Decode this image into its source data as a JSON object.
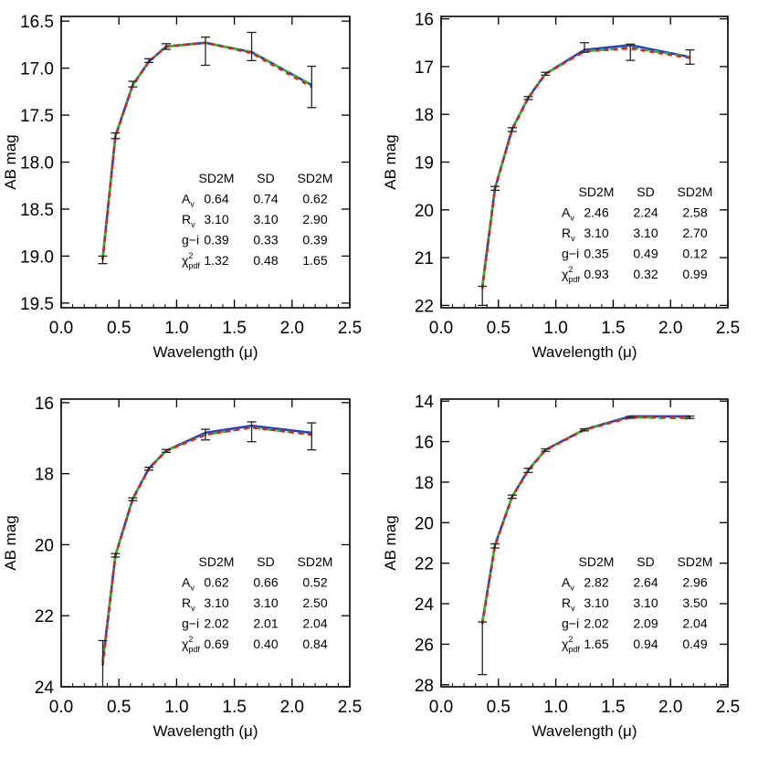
{
  "chart_data": [
    {
      "type": "line",
      "xlabel": "Wavelength (μ)",
      "ylabel": "AB mag",
      "xlim": [
        0.0,
        2.5
      ],
      "ylim": [
        19.55,
        16.45
      ],
      "y_inverted": true,
      "xticks": [
        "0.0",
        "0.5",
        "1.0",
        "1.5",
        "2.0",
        "2.5"
      ],
      "yticks": [
        "16.5",
        "17.0",
        "17.5",
        "18.0",
        "18.5",
        "19.0",
        "19.5"
      ],
      "x": [
        0.36,
        0.47,
        0.62,
        0.76,
        0.91,
        1.25,
        1.65,
        2.17
      ],
      "series": [
        {
          "color": "#1f3fd0",
          "values": [
            19.02,
            17.72,
            17.18,
            16.93,
            16.77,
            16.73,
            16.83,
            17.18
          ]
        },
        {
          "color": "#20c020",
          "values": [
            19.02,
            17.72,
            17.18,
            16.93,
            16.77,
            16.73,
            16.83,
            17.18
          ]
        },
        {
          "color": "#e02020",
          "values": [
            19.04,
            17.73,
            17.18,
            16.93,
            16.77,
            16.73,
            16.84,
            17.2
          ]
        }
      ],
      "errorbars": [
        {
          "x": 0.36,
          "y": 19.04,
          "err": 0.04
        },
        {
          "x": 0.47,
          "y": 17.72,
          "err": 0.03
        },
        {
          "x": 0.62,
          "y": 17.17,
          "err": 0.03
        },
        {
          "x": 0.76,
          "y": 16.92,
          "err": 0.02
        },
        {
          "x": 0.91,
          "y": 16.77,
          "err": 0.03
        },
        {
          "x": 1.25,
          "y": 16.82,
          "err": 0.15
        },
        {
          "x": 1.65,
          "y": 16.77,
          "err": 0.15
        },
        {
          "x": 2.17,
          "y": 17.2,
          "err": 0.22
        }
      ],
      "table": {
        "headers": [
          "SD2M",
          "SD",
          "SD2M"
        ],
        "rows": [
          {
            "label": "A",
            "sub": "v",
            "values": [
              "0.64",
              "0.74",
              "0.62"
            ]
          },
          {
            "label": "R",
            "sub": "v",
            "values": [
              "3.10",
              "3.10",
              "2.90"
            ]
          },
          {
            "label": "g−i",
            "sub": "",
            "values": [
              "0.39",
              "0.33",
              "0.39"
            ]
          },
          {
            "label": "χ",
            "sup": "2",
            "sub": "pdf",
            "values": [
              "1.32",
              "0.48",
              "1.65"
            ]
          }
        ]
      }
    },
    {
      "type": "line",
      "xlabel": "Wavelength (μ)",
      "ylabel": "AB mag",
      "xlim": [
        0.0,
        2.5
      ],
      "ylim": [
        22.05,
        15.95
      ],
      "y_inverted": true,
      "xticks": [
        "0.0",
        "0.5",
        "1.0",
        "1.5",
        "2.0",
        "2.5"
      ],
      "yticks": [
        "16",
        "17",
        "18",
        "19",
        "20",
        "21",
        "22"
      ],
      "x": [
        0.36,
        0.47,
        0.62,
        0.76,
        0.91,
        1.25,
        1.65,
        2.17
      ],
      "series": [
        {
          "color": "#1f3fd0",
          "values": [
            21.6,
            19.55,
            18.3,
            17.65,
            17.15,
            16.65,
            16.55,
            16.8
          ]
        },
        {
          "color": "#20c020",
          "values": [
            21.6,
            19.55,
            18.3,
            17.65,
            17.15,
            16.68,
            16.6,
            16.8
          ]
        },
        {
          "color": "#e02020",
          "values": [
            21.65,
            19.55,
            18.32,
            17.66,
            17.15,
            16.68,
            16.62,
            16.82
          ]
        }
      ],
      "errorbars": [
        {
          "x": 0.36,
          "y": 21.8,
          "err": 0.2
        },
        {
          "x": 0.47,
          "y": 19.55,
          "err": 0.04
        },
        {
          "x": 0.62,
          "y": 18.32,
          "err": 0.04
        },
        {
          "x": 0.76,
          "y": 17.66,
          "err": 0.03
        },
        {
          "x": 0.91,
          "y": 17.15,
          "err": 0.03
        },
        {
          "x": 1.25,
          "y": 16.6,
          "err": 0.1
        },
        {
          "x": 1.65,
          "y": 16.7,
          "err": 0.17
        },
        {
          "x": 2.17,
          "y": 16.8,
          "err": 0.15
        }
      ],
      "table": {
        "headers": [
          "SD2M",
          "SD",
          "SD2M"
        ],
        "rows": [
          {
            "label": "A",
            "sub": "v",
            "values": [
              "2.46",
              "2.24",
              "2.58"
            ]
          },
          {
            "label": "R",
            "sub": "v",
            "values": [
              "3.10",
              "3.10",
              "2.70"
            ]
          },
          {
            "label": "g−i",
            "sub": "",
            "values": [
              "0.35",
              "0.49",
              "0.12"
            ]
          },
          {
            "label": "χ",
            "sup": "2",
            "sub": "pdf",
            "values": [
              "0.93",
              "0.32",
              "0.99"
            ]
          }
        ]
      }
    },
    {
      "type": "line",
      "xlabel": "Wavelength (μ)",
      "ylabel": "AB mag",
      "xlim": [
        0.0,
        2.5
      ],
      "ylim": [
        24.0,
        15.9
      ],
      "y_inverted": true,
      "xticks": [
        "0.0",
        "0.5",
        "1.0",
        "1.5",
        "2.0",
        "2.5"
      ],
      "yticks": [
        "16",
        "18",
        "20",
        "22",
        "24"
      ],
      "x": [
        0.36,
        0.47,
        0.62,
        0.76,
        0.91,
        1.25,
        1.65,
        2.17
      ],
      "series": [
        {
          "color": "#1f3fd0",
          "values": [
            23.3,
            20.3,
            18.7,
            17.85,
            17.35,
            16.85,
            16.65,
            16.85
          ]
        },
        {
          "color": "#20c020",
          "values": [
            23.3,
            20.3,
            18.7,
            17.85,
            17.35,
            16.9,
            16.7,
            16.9
          ]
        },
        {
          "color": "#e02020",
          "values": [
            23.4,
            20.3,
            18.72,
            17.86,
            17.36,
            16.9,
            16.7,
            16.9
          ]
        }
      ],
      "errorbars": [
        {
          "x": 0.36,
          "y": 23.35,
          "err": 0.65
        },
        {
          "x": 0.47,
          "y": 20.3,
          "err": 0.05
        },
        {
          "x": 0.62,
          "y": 18.72,
          "err": 0.04
        },
        {
          "x": 0.76,
          "y": 17.86,
          "err": 0.04
        },
        {
          "x": 0.91,
          "y": 17.36,
          "err": 0.04
        },
        {
          "x": 1.25,
          "y": 16.9,
          "err": 0.15
        },
        {
          "x": 1.65,
          "y": 16.82,
          "err": 0.28
        },
        {
          "x": 2.17,
          "y": 16.95,
          "err": 0.38
        }
      ],
      "table": {
        "headers": [
          "SD2M",
          "SD",
          "SD2M"
        ],
        "rows": [
          {
            "label": "A",
            "sub": "v",
            "values": [
              "0.62",
              "0.66",
              "0.52"
            ]
          },
          {
            "label": "R",
            "sub": "v",
            "values": [
              "3.10",
              "3.10",
              "2.50"
            ]
          },
          {
            "label": "g−i",
            "sub": "",
            "values": [
              "2.02",
              "2.01",
              "2.04"
            ]
          },
          {
            "label": "χ",
            "sup": "2",
            "sub": "pdf",
            "values": [
              "0.69",
              "0.40",
              "0.84"
            ]
          }
        ]
      }
    },
    {
      "type": "line",
      "xlabel": "Wavelength (μ)",
      "ylabel": "AB mag",
      "xlim": [
        0.0,
        2.5
      ],
      "ylim": [
        28.1,
        13.9
      ],
      "y_inverted": true,
      "xticks": [
        "0.0",
        "0.5",
        "1.0",
        "1.5",
        "2.0",
        "2.5"
      ],
      "yticks": [
        "14",
        "16",
        "18",
        "20",
        "22",
        "24",
        "26",
        "28"
      ],
      "x": [
        0.36,
        0.47,
        0.62,
        0.76,
        0.91,
        1.25,
        1.65,
        2.17
      ],
      "series": [
        {
          "color": "#1f3fd0",
          "values": [
            24.9,
            21.1,
            18.7,
            17.4,
            16.4,
            15.4,
            14.75,
            14.75
          ]
        },
        {
          "color": "#20c020",
          "values": [
            24.9,
            21.1,
            18.7,
            17.4,
            16.4,
            15.4,
            14.8,
            14.85
          ]
        },
        {
          "color": "#e02020",
          "values": [
            25.0,
            21.15,
            18.72,
            17.42,
            16.42,
            15.42,
            14.8,
            14.8
          ]
        }
      ],
      "errorbars": [
        {
          "x": 0.36,
          "y": 26.2,
          "err": 1.3
        },
        {
          "x": 0.47,
          "y": 21.15,
          "err": 0.1
        },
        {
          "x": 0.62,
          "y": 18.72,
          "err": 0.08
        },
        {
          "x": 0.76,
          "y": 17.42,
          "err": 0.1
        },
        {
          "x": 0.91,
          "y": 16.42,
          "err": 0.06
        },
        {
          "x": 1.25,
          "y": 15.42,
          "err": 0.05
        },
        {
          "x": 1.65,
          "y": 14.8,
          "err": 0.05
        },
        {
          "x": 2.17,
          "y": 14.8,
          "err": 0.06
        }
      ],
      "table": {
        "headers": [
          "SD2M",
          "SD",
          "SD2M"
        ],
        "rows": [
          {
            "label": "A",
            "sub": "v",
            "values": [
              "2.82",
              "2.64",
              "2.96"
            ]
          },
          {
            "label": "R",
            "sub": "v",
            "values": [
              "3.10",
              "3.10",
              "3.50"
            ]
          },
          {
            "label": "g−i",
            "sub": "",
            "values": [
              "2.02",
              "2.09",
              "2.04"
            ]
          },
          {
            "label": "χ",
            "sup": "2",
            "sub": "pdf",
            "values": [
              "1.65",
              "0.94",
              "0.49"
            ]
          }
        ]
      }
    }
  ]
}
